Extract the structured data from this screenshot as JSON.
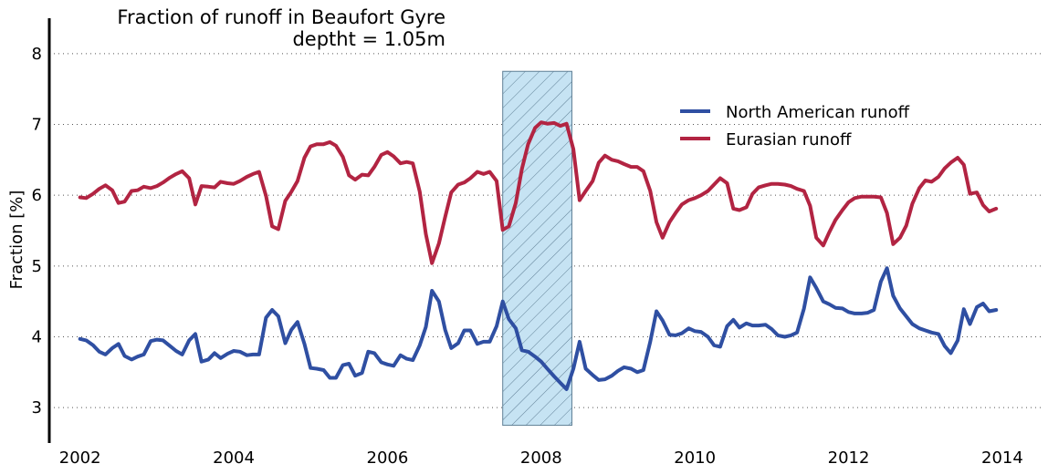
{
  "chart_data": {
    "type": "line",
    "title": "Fraction of runoff in Beaufort Gyre",
    "subtitle": "deptht = 1.05m",
    "xlabel": "",
    "ylabel": "Fraction [%]",
    "xlim": [
      2001.6,
      2014.5
    ],
    "ylim": [
      2.5,
      8.5
    ],
    "xticks": [
      "2002",
      "2004",
      "2006",
      "2008",
      "2010",
      "2012",
      "2014"
    ],
    "yticks": [
      "3",
      "4",
      "5",
      "6",
      "7",
      "8"
    ],
    "grid": "horizontal dotted",
    "legend_position": "upper right",
    "shaded_region": {
      "x": [
        2007.5,
        2008.4
      ],
      "color": "#c6e3f3",
      "hatch": "diagonal"
    },
    "series": [
      {
        "name": "North American runoff",
        "color": "#2f4fa2",
        "x": [
          2002.0,
          2002.08,
          2002.17,
          2002.25,
          2002.33,
          2002.42,
          2002.5,
          2002.58,
          2002.67,
          2002.75,
          2002.83,
          2002.92,
          2003.0,
          2003.08,
          2003.17,
          2003.25,
          2003.33,
          2003.42,
          2003.5,
          2003.58,
          2003.67,
          2003.75,
          2003.83,
          2003.92,
          2004.0,
          2004.08,
          2004.17,
          2004.25,
          2004.33,
          2004.42,
          2004.5,
          2004.58,
          2004.67,
          2004.75,
          2004.83,
          2004.92,
          2005.0,
          2005.08,
          2005.17,
          2005.25,
          2005.33,
          2005.42,
          2005.5,
          2005.58,
          2005.67,
          2005.75,
          2005.83,
          2005.92,
          2006.0,
          2006.08,
          2006.17,
          2006.25,
          2006.33,
          2006.42,
          2006.5,
          2006.58,
          2006.67,
          2006.75,
          2006.83,
          2006.92,
          2007.0,
          2007.08,
          2007.17,
          2007.25,
          2007.33,
          2007.42,
          2007.5,
          2007.58,
          2007.67,
          2007.75,
          2007.83,
          2007.92,
          2008.0,
          2008.08,
          2008.17,
          2008.25,
          2008.33,
          2008.42,
          2008.5,
          2008.58,
          2008.67,
          2008.75,
          2008.83,
          2008.92,
          2009.0,
          2009.08,
          2009.17,
          2009.25,
          2009.33,
          2009.42,
          2009.5,
          2009.58,
          2009.67,
          2009.75,
          2009.83,
          2009.92,
          2010.0,
          2010.08,
          2010.17,
          2010.25,
          2010.33,
          2010.42,
          2010.5,
          2010.58,
          2010.67,
          2010.75,
          2010.83,
          2010.92,
          2011.0,
          2011.08,
          2011.17,
          2011.25,
          2011.33,
          2011.42,
          2011.5,
          2011.58,
          2011.67,
          2011.75,
          2011.83,
          2011.92,
          2012.0,
          2012.08,
          2012.17,
          2012.25,
          2012.33,
          2012.42,
          2012.5,
          2012.58,
          2012.67,
          2012.75,
          2012.83,
          2012.92,
          2013.0,
          2013.08,
          2013.17,
          2013.25,
          2013.33,
          2013.42,
          2013.5,
          2013.58,
          2013.67,
          2013.75,
          2013.83,
          2013.92
        ],
        "values": [
          3.97,
          3.95,
          3.88,
          3.79,
          3.75,
          3.84,
          3.9,
          3.73,
          3.68,
          3.72,
          3.75,
          3.94,
          3.96,
          3.95,
          3.87,
          3.8,
          3.75,
          3.95,
          4.04,
          3.65,
          3.68,
          3.77,
          3.7,
          3.76,
          3.8,
          3.79,
          3.74,
          3.75,
          3.75,
          4.27,
          4.38,
          4.29,
          3.91,
          4.1,
          4.21,
          3.9,
          3.56,
          3.55,
          3.53,
          3.42,
          3.42,
          3.6,
          3.62,
          3.45,
          3.49,
          3.79,
          3.77,
          3.64,
          3.61,
          3.59,
          3.74,
          3.69,
          3.67,
          3.88,
          4.14,
          4.65,
          4.5,
          4.1,
          3.84,
          3.91,
          4.09,
          4.09,
          3.9,
          3.93,
          3.93,
          4.15,
          4.5,
          4.25,
          4.12,
          3.81,
          3.79,
          3.72,
          3.65,
          3.55,
          3.44,
          3.35,
          3.26,
          3.55,
          3.93,
          3.55,
          3.46,
          3.39,
          3.4,
          3.45,
          3.52,
          3.57,
          3.55,
          3.5,
          3.53,
          3.93,
          4.36,
          4.23,
          4.03,
          4.02,
          4.05,
          4.12,
          4.08,
          4.07,
          4.0,
          3.88,
          3.86,
          4.15,
          4.24,
          4.13,
          4.19,
          4.16,
          4.16,
          4.17,
          4.11,
          4.02,
          4.0,
          4.02,
          4.06,
          4.4,
          4.84,
          4.69,
          4.5,
          4.46,
          4.41,
          4.4,
          4.35,
          4.33,
          4.33,
          4.34,
          4.38,
          4.78,
          4.97,
          4.58,
          4.4,
          4.29,
          4.18,
          4.12,
          4.09,
          4.06,
          4.04,
          3.87,
          3.77,
          3.95,
          4.39,
          4.18,
          4.42,
          4.47,
          4.36,
          4.38
        ]
      },
      {
        "name": "Eurasian runoff",
        "color": "#b22442",
        "x": [
          2002.0,
          2002.08,
          2002.17,
          2002.25,
          2002.33,
          2002.42,
          2002.5,
          2002.58,
          2002.67,
          2002.75,
          2002.83,
          2002.92,
          2003.0,
          2003.08,
          2003.17,
          2003.25,
          2003.33,
          2003.42,
          2003.5,
          2003.58,
          2003.67,
          2003.75,
          2003.83,
          2003.92,
          2004.0,
          2004.08,
          2004.17,
          2004.25,
          2004.33,
          2004.42,
          2004.5,
          2004.58,
          2004.67,
          2004.75,
          2004.83,
          2004.92,
          2005.0,
          2005.08,
          2005.17,
          2005.25,
          2005.33,
          2005.42,
          2005.5,
          2005.58,
          2005.67,
          2005.75,
          2005.83,
          2005.92,
          2006.0,
          2006.08,
          2006.17,
          2006.25,
          2006.33,
          2006.42,
          2006.5,
          2006.58,
          2006.67,
          2006.75,
          2006.83,
          2006.92,
          2007.0,
          2007.08,
          2007.17,
          2007.25,
          2007.33,
          2007.42,
          2007.5,
          2007.58,
          2007.67,
          2007.75,
          2007.83,
          2007.92,
          2008.0,
          2008.08,
          2008.17,
          2008.25,
          2008.33,
          2008.42,
          2008.5,
          2008.58,
          2008.67,
          2008.75,
          2008.83,
          2008.92,
          2009.0,
          2009.08,
          2009.17,
          2009.25,
          2009.33,
          2009.42,
          2009.5,
          2009.58,
          2009.67,
          2009.75,
          2009.83,
          2009.92,
          2010.0,
          2010.08,
          2010.17,
          2010.25,
          2010.33,
          2010.42,
          2010.5,
          2010.58,
          2010.67,
          2010.75,
          2010.83,
          2010.92,
          2011.0,
          2011.08,
          2011.17,
          2011.25,
          2011.33,
          2011.42,
          2011.5,
          2011.58,
          2011.67,
          2011.75,
          2011.83,
          2011.92,
          2012.0,
          2012.08,
          2012.17,
          2012.25,
          2012.33,
          2012.42,
          2012.5,
          2012.58,
          2012.67,
          2012.75,
          2012.83,
          2012.92,
          2013.0,
          2013.08,
          2013.17,
          2013.25,
          2013.33,
          2013.42,
          2013.5,
          2013.58,
          2013.67,
          2013.75,
          2013.83,
          2013.92
        ],
        "values": [
          5.97,
          5.96,
          6.02,
          6.09,
          6.14,
          6.07,
          5.89,
          5.91,
          6.06,
          6.07,
          6.12,
          6.1,
          6.13,
          6.18,
          6.25,
          6.3,
          6.34,
          6.24,
          5.87,
          6.13,
          6.12,
          6.11,
          6.19,
          6.17,
          6.16,
          6.2,
          6.26,
          6.3,
          6.33,
          5.99,
          5.56,
          5.52,
          5.92,
          6.05,
          6.2,
          6.53,
          6.69,
          6.72,
          6.72,
          6.75,
          6.7,
          6.54,
          6.28,
          6.22,
          6.29,
          6.28,
          6.4,
          6.57,
          6.61,
          6.55,
          6.45,
          6.47,
          6.45,
          6.05,
          5.45,
          5.04,
          5.32,
          5.69,
          6.04,
          6.15,
          6.18,
          6.24,
          6.33,
          6.3,
          6.33,
          6.2,
          5.51,
          5.56,
          5.89,
          6.37,
          6.72,
          6.95,
          7.03,
          7.01,
          7.02,
          6.98,
          7.01,
          6.65,
          5.93,
          6.06,
          6.2,
          6.46,
          6.56,
          6.5,
          6.48,
          6.44,
          6.4,
          6.4,
          6.34,
          6.06,
          5.62,
          5.4,
          5.62,
          5.75,
          5.87,
          5.93,
          5.96,
          6.0,
          6.06,
          6.15,
          6.24,
          6.17,
          5.81,
          5.79,
          5.83,
          6.02,
          6.11,
          6.14,
          6.16,
          6.16,
          6.15,
          6.13,
          6.09,
          6.06,
          5.85,
          5.4,
          5.29,
          5.48,
          5.65,
          5.79,
          5.9,
          5.96,
          5.98,
          5.98,
          5.98,
          5.97,
          5.75,
          5.31,
          5.4,
          5.57,
          5.88,
          6.1,
          6.21,
          6.19,
          6.26,
          6.38,
          6.46,
          6.53,
          6.43,
          6.02,
          6.04,
          5.86,
          5.77,
          5.81
        ]
      }
    ]
  }
}
